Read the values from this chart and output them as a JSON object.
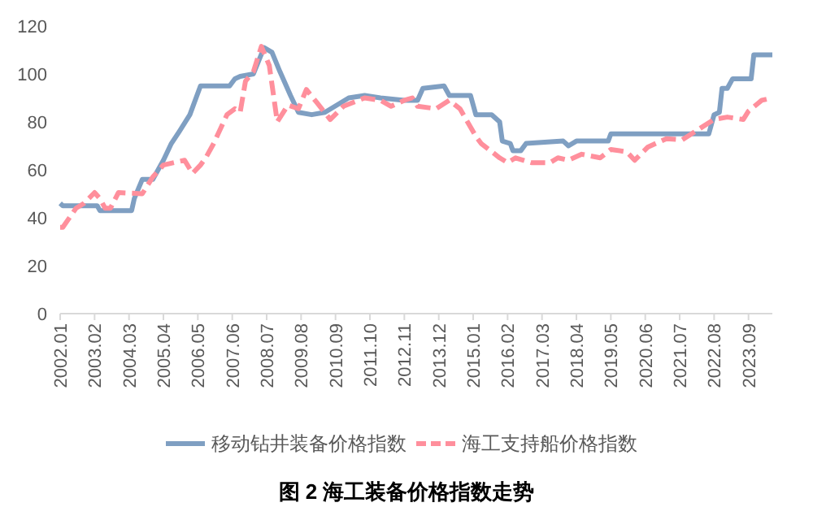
{
  "chart_data": {
    "type": "line",
    "title": "图 2 海工装备价格指数走势",
    "legend": "bottom",
    "ylim": [
      0,
      120
    ],
    "yticks": [
      0,
      20,
      40,
      60,
      80,
      100,
      120
    ],
    "xlim": [
      "2002-01",
      "2024-06"
    ],
    "xticks": [
      {
        "value": "2002-01",
        "label": "2002.01"
      },
      {
        "value": "2003-02",
        "label": "2003.02"
      },
      {
        "value": "2004-03",
        "label": "2004.03"
      },
      {
        "value": "2005-04",
        "label": "2005.04"
      },
      {
        "value": "2006-05",
        "label": "2006.05"
      },
      {
        "value": "2007-06",
        "label": "2007.06"
      },
      {
        "value": "2008-07",
        "label": "2008.07"
      },
      {
        "value": "2009-08",
        "label": "2009.08"
      },
      {
        "value": "2010-09",
        "label": "2010.09"
      },
      {
        "value": "2011-10",
        "label": "2011.10"
      },
      {
        "value": "2012-11",
        "label": "2012.11"
      },
      {
        "value": "2013-12",
        "label": "2013.12"
      },
      {
        "value": "2015-01",
        "label": "2015.01"
      },
      {
        "value": "2016-02",
        "label": "2016.02"
      },
      {
        "value": "2017-03",
        "label": "2017.03"
      },
      {
        "value": "2018-04",
        "label": "2018.04"
      },
      {
        "value": "2019-05",
        "label": "2019.05"
      },
      {
        "value": "2020-06",
        "label": "2020.06"
      },
      {
        "value": "2021-07",
        "label": "2021.07"
      },
      {
        "value": "2022-08",
        "label": "2022.08"
      },
      {
        "value": "2023-09",
        "label": "2023.09"
      }
    ],
    "series": [
      {
        "name": "移动钻井装备价格指数",
        "color": "#7f9fc2",
        "line_style": "solid",
        "x": [
          "2002-01",
          "2002-02",
          "2003-03",
          "2003-04",
          "2004-04",
          "2004-05",
          "2004-08",
          "2004-12",
          "2005-04",
          "2005-07",
          "2005-10",
          "2006-02",
          "2006-06",
          "2007-05",
          "2007-07",
          "2007-09",
          "2008-02",
          "2008-06",
          "2008-09",
          "2008-12",
          "2009-04",
          "2009-07",
          "2009-12",
          "2010-05",
          "2011-02",
          "2011-08",
          "2012-02",
          "2012-11",
          "2013-04",
          "2013-06",
          "2014-02",
          "2014-04",
          "2014-12",
          "2015-02",
          "2015-08",
          "2015-11",
          "2015-12",
          "2016-03",
          "2016-04",
          "2016-07",
          "2016-09",
          "2017-11",
          "2018-01",
          "2018-04",
          "2019-04",
          "2019-05",
          "2022-06",
          "2022-08",
          "2022-10",
          "2022-11",
          "2023-01",
          "2023-03",
          "2023-10",
          "2023-11",
          "2024-06"
        ],
        "values": [
          46,
          45,
          45,
          43,
          43,
          48,
          56,
          56,
          64,
          71,
          76,
          83,
          95,
          95,
          98,
          99,
          100,
          111,
          109,
          101,
          91,
          84,
          83,
          84,
          90,
          91,
          90,
          89,
          89,
          94,
          95,
          91,
          91,
          83,
          83,
          80,
          72,
          71,
          68,
          68,
          71,
          72,
          70,
          72,
          72,
          75,
          75,
          83,
          84,
          94,
          94,
          98,
          98,
          108,
          108
        ]
      },
      {
        "name": "海工支持船价格指数",
        "color": "#ff8f9c",
        "line_style": "dashed",
        "x": [
          "2002-01",
          "2002-02",
          "2002-07",
          "2002-10",
          "2003-02",
          "2003-04",
          "2003-06",
          "2003-08",
          "2003-11",
          "2004-08",
          "2004-12",
          "2005-04",
          "2005-12",
          "2006-03",
          "2006-06",
          "2006-08",
          "2006-11",
          "2007-04",
          "2007-07",
          "2007-09",
          "2007-11",
          "2008-02",
          "2008-05",
          "2008-08",
          "2008-11",
          "2009-03",
          "2009-07",
          "2009-10",
          "2010-02",
          "2010-07",
          "2010-12",
          "2011-08",
          "2012-02",
          "2012-06",
          "2012-11",
          "2013-02",
          "2013-04",
          "2013-11",
          "2014-04",
          "2014-08",
          "2015-02",
          "2015-04",
          "2015-11",
          "2016-02",
          "2016-05",
          "2016-11",
          "2017-06",
          "2017-09",
          "2018-01",
          "2018-06",
          "2019-01",
          "2019-05",
          "2019-11",
          "2020-02",
          "2020-07",
          "2021-02",
          "2021-08",
          "2022-03",
          "2022-08",
          "2023-01",
          "2023-07",
          "2023-09",
          "2024-02",
          "2024-06"
        ],
        "values": [
          36,
          36,
          44,
          46,
          50.5,
          48,
          44,
          44,
          50.5,
          50,
          57,
          62,
          64,
          58.5,
          62,
          65,
          71,
          83,
          85.5,
          84,
          97,
          101,
          111.5,
          103.5,
          80,
          87,
          85.5,
          93.5,
          88,
          81,
          86.5,
          90,
          89,
          86.5,
          89,
          90,
          86.5,
          85.5,
          89,
          85.5,
          74,
          71,
          65,
          63,
          65,
          63,
          63,
          65,
          64,
          66.5,
          65,
          68.5,
          67.5,
          64,
          69.5,
          73,
          72.5,
          77.5,
          81,
          82,
          81,
          84.5,
          89,
          90
        ]
      }
    ]
  }
}
